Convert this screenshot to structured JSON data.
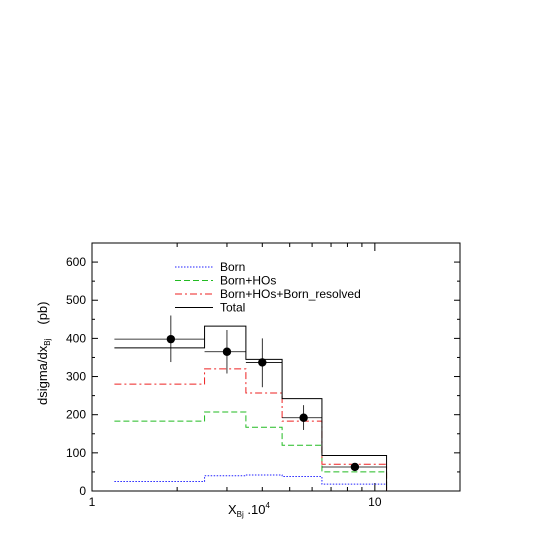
{
  "chart_data": {
    "type": "histogram",
    "title": "",
    "xlabel_main": "X",
    "xlabel_sub": "Bj",
    "xlabel_suffix": " .10",
    "xlabel_sup": "4",
    "ylabel_main": "dsigma/dx",
    "ylabel_sub": "Bj",
    "ylabel_unit": "(pb)",
    "x_scale": "log",
    "xlim": [
      1,
      20
    ],
    "ylim": [
      0,
      650
    ],
    "x_ticks": [
      {
        "value": 1,
        "label": "1"
      },
      {
        "value": 10,
        "label": "10"
      }
    ],
    "y_ticks": [
      {
        "value": 0,
        "label": "0"
      },
      {
        "value": 100,
        "label": "100"
      },
      {
        "value": 200,
        "label": "200"
      },
      {
        "value": 300,
        "label": "300"
      },
      {
        "value": 400,
        "label": "400"
      },
      {
        "value": 500,
        "label": "500"
      },
      {
        "value": 600,
        "label": "600"
      }
    ],
    "grid": false,
    "legend_position": "top-center",
    "bin_edges": [
      1.2,
      2.5,
      3.5,
      4.7,
      6.5,
      11
    ],
    "series": [
      {
        "name": "Born",
        "style": "dotted",
        "color": "#2222ff",
        "values": [
          25,
          40,
          42,
          38,
          18
        ]
      },
      {
        "name": "Born+HOs",
        "style": "dashed",
        "color": "#22bb22",
        "values": [
          183,
          207,
          167,
          120,
          50
        ]
      },
      {
        "name": "Born+HOs+Born_resolved",
        "style": "dashdot",
        "color": "#ee2222",
        "values": [
          280,
          320,
          257,
          183,
          70
        ]
      },
      {
        "name": "Total",
        "style": "solid",
        "color": "#000000",
        "values": [
          375,
          432,
          345,
          242,
          93
        ]
      }
    ],
    "data_points": [
      {
        "x": 1.9,
        "y": 398,
        "y_low": 338,
        "y_high": 460,
        "x_low": 1.2,
        "x_high": 2.5
      },
      {
        "x": 3.0,
        "y": 365,
        "y_low": 308,
        "y_high": 422,
        "x_low": 2.5,
        "x_high": 3.5
      },
      {
        "x": 4.0,
        "y": 337,
        "y_low": 272,
        "y_high": 400,
        "x_low": 3.5,
        "x_high": 4.7
      },
      {
        "x": 5.6,
        "y": 192,
        "y_low": 160,
        "y_high": 225,
        "x_low": 4.7,
        "x_high": 6.5
      },
      {
        "x": 8.5,
        "y": 63,
        "y_low": 54,
        "y_high": 72,
        "x_low": 6.5,
        "x_high": 11
      }
    ]
  }
}
